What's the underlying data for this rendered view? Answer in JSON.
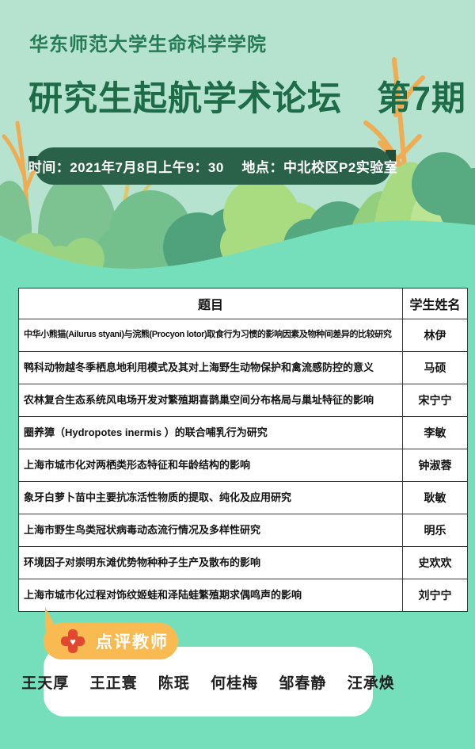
{
  "header": {
    "school": "华东师范大学生命科学学院",
    "title": "研究生起航学术论坛　第7期",
    "info": "时间：2021年7月8日上午9：30　 地点：中北校区P2实验室"
  },
  "table": {
    "headers": [
      "题目",
      "学生姓名"
    ],
    "rows": [
      {
        "title": "中华小熊猫(Ailurus styani)与浣熊(Procyon lotor)取食行为习惯的影响因素及物种间差异的比较研究",
        "name": "林伊"
      },
      {
        "title": "鸭科动物越冬季栖息地利用模式及其对上海野生动物保护和禽流感防控的意义",
        "name": "马硕"
      },
      {
        "title": "农林复合生态系统风电场开发对繁殖期喜鹊巢空间分布格局与巢址特征的影响",
        "name": "宋宁宁"
      },
      {
        "title": "圈养獐（Hydropotes inermis ）的联合哺乳行为研究",
        "name": "李敏"
      },
      {
        "title": "上海市城市化对两栖类形态特征和年龄结构的影响",
        "name": "钟淑蓉"
      },
      {
        "title": "象牙白萝卜苗中主要抗冻活性物质的提取、纯化及应用研究",
        "name": "耿敏"
      },
      {
        "title": "上海市野生鸟类冠状病毒动态流行情况及多样性研究",
        "name": "明乐"
      },
      {
        "title": "环境因子对崇明东滩优势物种种子生产及散布的影响",
        "name": "史欢欢"
      },
      {
        "title": "上海市城市化过程对饰纹姬蛙和泽陆蛙繁殖期求偶鸣声的影响",
        "name": "刘宁宁"
      }
    ]
  },
  "reviewers": {
    "badge_label": "点评教师",
    "badge_icon": "cross-heart-icon",
    "heart_glyph": "♥",
    "names": [
      "王天厚",
      "王正寰",
      "陈珉",
      "何桂梅",
      "邹春静",
      "汪承焕"
    ]
  },
  "colors": {
    "mint_background": "#b5e3d0",
    "teal_background": "#75dfbc",
    "title_green": "#1d6c47",
    "school_green": "#267a54",
    "badge_green": "#2a6149",
    "ribbon_notch_green": "#1e4f3a",
    "reviewer_badge_orange": "#f9bb51",
    "cross_red": "#e2472f",
    "bush_dark_teal": "#4fa27c",
    "bush_medium_green": "#74c08c",
    "bush_light_green": "#a9db80",
    "branch_orange": "#efac52",
    "table_background": "#ffffff",
    "table_border": "#3a3a3a"
  }
}
